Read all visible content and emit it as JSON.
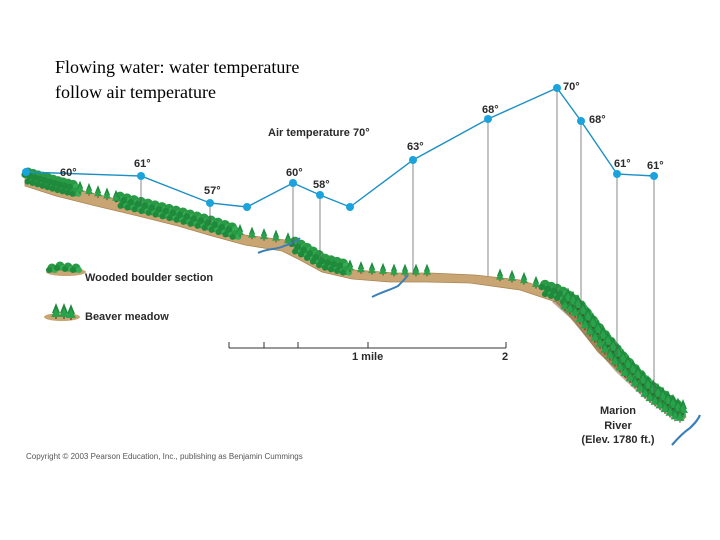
{
  "title": {
    "line1": "Flowing water: water temperature",
    "line2": "follow air temperature"
  },
  "diagram": {
    "air_temperature_label": "Air temperature 70°",
    "temperature_readings": [
      "60°",
      "61°",
      "57°",
      "60°",
      "58°",
      "63°",
      "68°",
      "70°",
      "68°",
      "61°",
      "61°"
    ],
    "legend": {
      "wooded": "Wooded boulder section",
      "meadow": "Beaver meadow"
    },
    "scale": {
      "mile_label": "1 mile",
      "two_label": "2"
    },
    "river": {
      "line1": "Marion",
      "line2": "River",
      "line3": "(Elev. 1780 ft.)"
    },
    "colors": {
      "point": "#1aa3dc",
      "line": "#1b8fc4",
      "tree": "#1f8a3c",
      "ground": "#c9a574",
      "water": "#3a7fb8"
    }
  },
  "copyright": "Copyright © 2003 Pearson Education, Inc., publishing as Benjamin Cummings"
}
